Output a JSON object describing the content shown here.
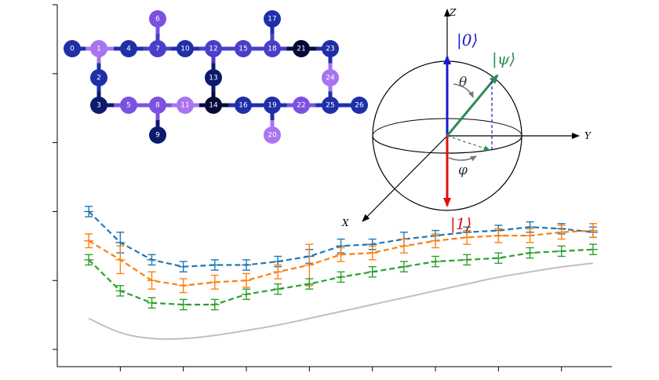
{
  "chart_data": [
    {
      "type": "line",
      "title": "",
      "xlabel": "",
      "ylabel": "",
      "x": [
        1,
        2,
        3,
        4,
        5,
        6,
        7,
        8,
        9,
        10,
        11,
        12,
        13,
        14,
        15,
        16,
        17
      ],
      "xlim": [
        0,
        17.6
      ],
      "ylim": [
        -0.05,
        1.0
      ],
      "xticks": [
        2,
        4,
        6,
        8,
        10,
        12,
        14,
        16
      ],
      "yticks": [
        0,
        0.2,
        0.4,
        0.6,
        0.8,
        1.0
      ],
      "show_tick_labels": false,
      "series": [
        {
          "color": "#1f77b4",
          "style": "dashed",
          "marker": "errorbar",
          "values": [
            0.4,
            0.31,
            0.26,
            0.24,
            0.245,
            0.245,
            0.255,
            0.27,
            0.3,
            0.305,
            0.32,
            0.33,
            0.34,
            0.345,
            0.355,
            0.35,
            0.34
          ],
          "errors": [
            0.015,
            0.03,
            0.015,
            0.015,
            0.015,
            0.015,
            0.015,
            0.02,
            0.02,
            0.015,
            0.02,
            0.015,
            0.015,
            0.015,
            0.015,
            0.015,
            0.015
          ]
        },
        {
          "color": "#ff7f0e",
          "style": "dashed",
          "marker": "errorbar",
          "values": [
            0.315,
            0.26,
            0.2,
            0.185,
            0.195,
            0.2,
            0.225,
            0.245,
            0.275,
            0.28,
            0.3,
            0.315,
            0.325,
            0.33,
            0.33,
            0.34,
            0.345
          ],
          "errors": [
            0.02,
            0.04,
            0.025,
            0.02,
            0.02,
            0.02,
            0.02,
            0.06,
            0.02,
            0.02,
            0.02,
            0.02,
            0.02,
            0.02,
            0.02,
            0.02,
            0.02
          ]
        },
        {
          "color": "#2ca02c",
          "style": "dashed",
          "marker": "errorbar",
          "values": [
            0.26,
            0.17,
            0.135,
            0.13,
            0.13,
            0.16,
            0.175,
            0.19,
            0.21,
            0.225,
            0.24,
            0.255,
            0.26,
            0.265,
            0.28,
            0.285,
            0.29
          ],
          "errors": [
            0.015,
            0.015,
            0.015,
            0.015,
            0.015,
            0.015,
            0.015,
            0.015,
            0.015,
            0.015,
            0.015,
            0.015,
            0.015,
            0.015,
            0.015,
            0.015,
            0.015
          ]
        },
        {
          "color": "#c0c0c0",
          "style": "solid",
          "marker": "none",
          "values": [
            0.09,
            0.045,
            0.03,
            0.03,
            0.04,
            0.055,
            0.07,
            0.09,
            0.11,
            0.13,
            0.15,
            0.17,
            0.19,
            0.21,
            0.225,
            0.24,
            0.25
          ]
        }
      ]
    }
  ],
  "qubit_map": {
    "colors": {
      "dark": "#0c1a6e",
      "navy": "#1e2fa8",
      "indigo": "#4a3fc8",
      "purple": "#7b52e0",
      "lavender": "#a874f0",
      "black": "#070a38"
    },
    "nodes": [
      {
        "id": "0",
        "shade": "navy"
      },
      {
        "id": "1",
        "shade": "lavender"
      },
      {
        "id": "2",
        "shade": "navy"
      },
      {
        "id": "3",
        "shade": "dark"
      },
      {
        "id": "4",
        "shade": "navy"
      },
      {
        "id": "5",
        "shade": "purple"
      },
      {
        "id": "6",
        "shade": "purple"
      },
      {
        "id": "7",
        "shade": "indigo"
      },
      {
        "id": "8",
        "shade": "purple"
      },
      {
        "id": "9",
        "shade": "dark"
      },
      {
        "id": "10",
        "shade": "navy"
      },
      {
        "id": "11",
        "shade": "lavender"
      },
      {
        "id": "12",
        "shade": "indigo"
      },
      {
        "id": "13",
        "shade": "dark"
      },
      {
        "id": "14",
        "shade": "black"
      },
      {
        "id": "15",
        "shade": "indigo"
      },
      {
        "id": "16",
        "shade": "navy"
      },
      {
        "id": "17",
        "shade": "navy"
      },
      {
        "id": "18",
        "shade": "indigo"
      },
      {
        "id": "19",
        "shade": "navy"
      },
      {
        "id": "20",
        "shade": "lavender"
      },
      {
        "id": "21",
        "shade": "black"
      },
      {
        "id": "22",
        "shade": "purple"
      },
      {
        "id": "23",
        "shade": "navy"
      },
      {
        "id": "24",
        "shade": "lavender"
      },
      {
        "id": "25",
        "shade": "navy"
      },
      {
        "id": "26",
        "shade": "navy"
      }
    ],
    "edges": [
      [
        "0",
        "1"
      ],
      [
        "1",
        "4"
      ],
      [
        "4",
        "7"
      ],
      [
        "7",
        "10"
      ],
      [
        "10",
        "12"
      ],
      [
        "12",
        "15"
      ],
      [
        "15",
        "18"
      ],
      [
        "18",
        "21"
      ],
      [
        "21",
        "23"
      ],
      [
        "1",
        "2"
      ],
      [
        "2",
        "3"
      ],
      [
        "3",
        "5"
      ],
      [
        "5",
        "8"
      ],
      [
        "8",
        "11"
      ],
      [
        "11",
        "14"
      ],
      [
        "14",
        "16"
      ],
      [
        "16",
        "19"
      ],
      [
        "19",
        "22"
      ],
      [
        "22",
        "25"
      ],
      [
        "25",
        "26"
      ],
      [
        "6",
        "7"
      ],
      [
        "8",
        "9"
      ],
      [
        "12",
        "13"
      ],
      [
        "13",
        "14"
      ],
      [
        "17",
        "18"
      ],
      [
        "19",
        "20"
      ],
      [
        "23",
        "24"
      ],
      [
        "24",
        "25"
      ]
    ]
  },
  "bloch": {
    "label_zero": "|0⟩",
    "label_one": "|1⟩",
    "label_psi": "|ψ⟩",
    "label_theta": "θ",
    "label_phi": "φ",
    "axis_x": "X",
    "axis_y": "Y",
    "axis_z": "Z",
    "color_zero": "#1a1acc",
    "color_one": "#e01010",
    "color_psi": "#2e8b57"
  }
}
